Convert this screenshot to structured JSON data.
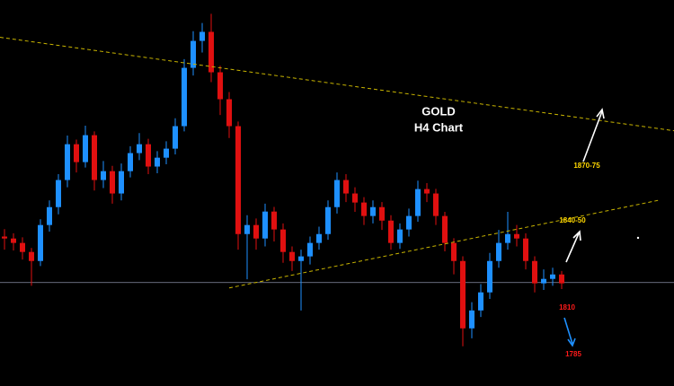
{
  "chart_data": {
    "type": "candlestick",
    "title": "GOLD",
    "subtitle": "H4 Chart",
    "up_color": "#1e90ff",
    "down_color": "#e01010",
    "trend_color": "#c8b400",
    "level_color": "#8a8fa8",
    "xlim": [
      -0.5,
      74.5
    ],
    "ylim": [
      1747,
      1982
    ],
    "open": [
      1838.0,
      1836.8,
      1834.1,
      1828.6,
      1823.1,
      1845.0,
      1855.9,
      1872.4,
      1894.2,
      1883.3,
      1899.7,
      1872.4,
      1877.8,
      1864.2,
      1877.8,
      1888.8,
      1894.2,
      1880.6,
      1886.0,
      1891.5,
      1905.2,
      1940.7,
      1957.1,
      1962.6,
      1938.0,
      1921.6,
      1905.2,
      1839.5,
      1845.0,
      1836.8,
      1853.2,
      1842.3,
      1828.6,
      1823.1,
      1825.9,
      1834.1,
      1839.5,
      1855.9,
      1872.4,
      1864.2,
      1858.7,
      1850.5,
      1855.9,
      1847.7,
      1834.1,
      1842.3,
      1850.5,
      1866.9,
      1864.2,
      1850.5,
      1834.1,
      1823.1,
      1782.1,
      1793.0,
      1804.0,
      1823.1,
      1834.1,
      1839.5,
      1836.8,
      1823.1,
      1809.5,
      1812.2,
      1814.9
    ],
    "high": [
      1842.5,
      1840.0,
      1837.5,
      1831.0,
      1848.5,
      1860.0,
      1876.0,
      1899.5,
      1897.0,
      1905.5,
      1902.0,
      1884.0,
      1881.0,
      1882.5,
      1893.0,
      1901.0,
      1897.5,
      1890.0,
      1896.0,
      1910.0,
      1946.0,
      1963.0,
      1968.0,
      1973.6,
      1942.0,
      1926.0,
      1908.0,
      1851.0,
      1849.0,
      1858.0,
      1856.0,
      1846.0,
      1832.0,
      1830.0,
      1838.0,
      1844.0,
      1860.0,
      1877.0,
      1876.0,
      1868.0,
      1862.0,
      1860.0,
      1859.0,
      1851.0,
      1846.0,
      1855.0,
      1872.0,
      1870.5,
      1867.0,
      1853.0,
      1837.0,
      1826.0,
      1798.0,
      1809.0,
      1828.0,
      1842.0,
      1853.0,
      1845.0,
      1840.0,
      1826.0,
      1818.0,
      1819.0,
      1817.0
    ],
    "low": [
      1830.0,
      1829.5,
      1824.0,
      1808.0,
      1820.0,
      1841.0,
      1851.5,
      1868.0,
      1877.0,
      1880.0,
      1866.0,
      1867.5,
      1858.0,
      1860.0,
      1874.0,
      1884.5,
      1876.0,
      1876.5,
      1882.0,
      1888.0,
      1902.0,
      1936.0,
      1950.0,
      1932.0,
      1912.0,
      1898.0,
      1830.0,
      1812.0,
      1830.0,
      1832.0,
      1835.0,
      1822.0,
      1817.0,
      1793.0,
      1821.0,
      1830.0,
      1836.0,
      1852.0,
      1859.0,
      1853.0,
      1845.0,
      1846.0,
      1842.0,
      1830.0,
      1830.5,
      1838.0,
      1847.0,
      1859.0,
      1845.0,
      1829.0,
      1815.0,
      1771.2,
      1776.0,
      1789.0,
      1800.0,
      1819.0,
      1830.0,
      1832.0,
      1818.0,
      1804.0,
      1805.5,
      1808.0,
      1806.0
    ],
    "close": [
      1836.8,
      1834.1,
      1828.6,
      1823.1,
      1845.0,
      1855.9,
      1872.4,
      1894.2,
      1883.3,
      1899.7,
      1872.4,
      1877.8,
      1864.2,
      1877.8,
      1888.8,
      1894.2,
      1880.6,
      1886.0,
      1891.5,
      1905.2,
      1940.7,
      1957.1,
      1962.6,
      1938.0,
      1921.6,
      1905.2,
      1839.5,
      1845.0,
      1836.8,
      1853.2,
      1842.3,
      1828.6,
      1823.1,
      1825.9,
      1834.1,
      1839.5,
      1855.9,
      1872.4,
      1864.2,
      1858.7,
      1850.5,
      1855.9,
      1847.7,
      1834.1,
      1842.3,
      1850.5,
      1866.9,
      1864.2,
      1850.5,
      1834.1,
      1823.1,
      1782.1,
      1793.0,
      1804.0,
      1823.1,
      1834.1,
      1839.5,
      1836.8,
      1823.1,
      1809.5,
      1812.2,
      1814.9,
      1809.5
    ],
    "trendlines": [
      {
        "x": [
          -0.5,
          74.5
        ],
        "y": [
          1959.3,
          1902.4
        ]
      },
      {
        "x": [
          25,
          73
        ],
        "y": [
          1806.7,
          1860.3
        ]
      }
    ],
    "levels": [
      1810
    ],
    "annotations": [
      {
        "text": "1870-75",
        "color": "#ffd800"
      },
      {
        "text": "1840-50",
        "color": "#ffd800"
      },
      {
        "text": "1810",
        "color": "#ff1a1a"
      },
      {
        "text": "1785",
        "color": "#ff1a1a"
      }
    ]
  }
}
